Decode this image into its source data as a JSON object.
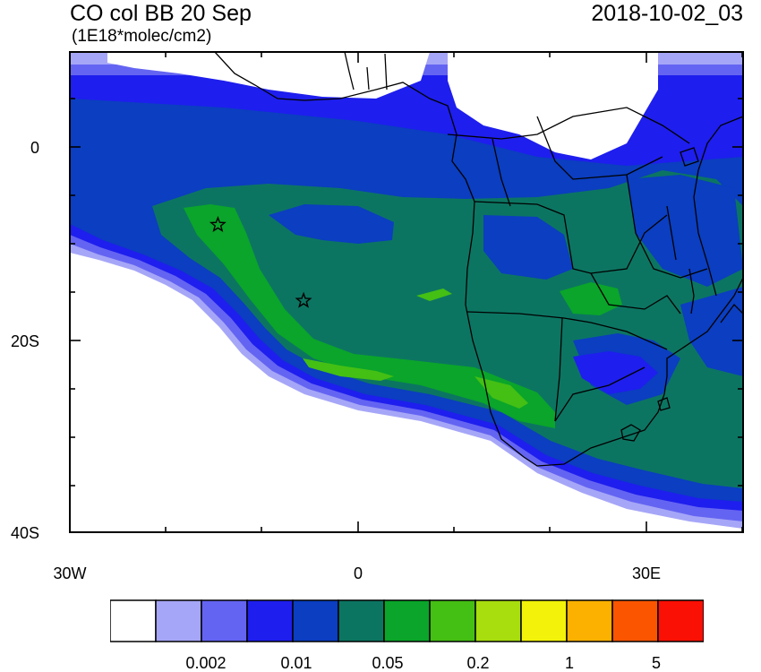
{
  "header": {
    "title": "CO col BB 20 Sep",
    "units": "(1E18*molec/cm2)",
    "date": "2018-10-02_03"
  },
  "axes": {
    "lat_labels": [
      "0",
      "20S",
      "40S"
    ],
    "lon_labels": [
      "30W",
      "0",
      "30E"
    ]
  },
  "colorbar": {
    "labels": [
      "0.002",
      "0.01",
      "0.05",
      "0.2",
      "1",
      "5"
    ],
    "colors": [
      "#ffffff",
      "#a6a6f8",
      "#6464f2",
      "#1e1eee",
      "#0b3ec0",
      "#0c7562",
      "#0aa52a",
      "#44bf14",
      "#a8dd0e",
      "#f2f20a",
      "#fcb100",
      "#fc5500",
      "#fa1004"
    ]
  },
  "markers": {
    "icon": "star-icon",
    "points": [
      {
        "lon": -14.6,
        "lat": -8.0
      },
      {
        "lon": -5.7,
        "lat": -15.9
      }
    ]
  }
}
